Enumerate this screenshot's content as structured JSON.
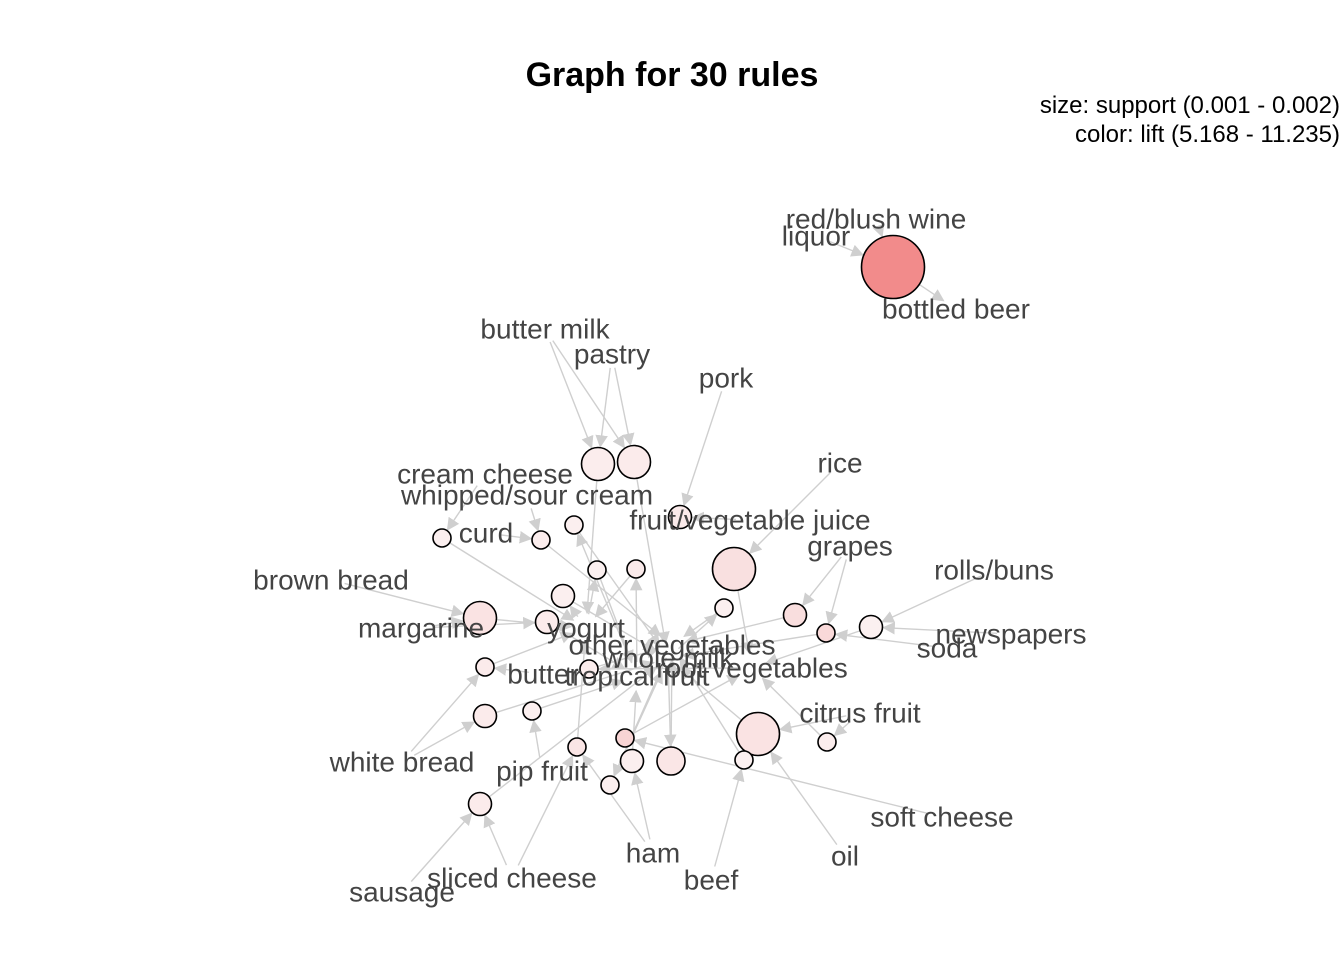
{
  "title": "Graph for 30 rules",
  "legend": {
    "size": "size: support (0.001 - 0.002)",
    "color": "color: lift (5.168 - 11.235)"
  },
  "colors": {
    "lift_low": "#fbf1f1",
    "lift_high": "#f28b8b",
    "edge": "#cfcfcf",
    "label": "#444444"
  },
  "items": [
    {
      "id": "red-blush-wine",
      "label": "red/blush wine"
    },
    {
      "id": "liquor",
      "label": "liquor"
    },
    {
      "id": "bottled-beer",
      "label": "bottled beer"
    },
    {
      "id": "butter-milk",
      "label": "butter milk"
    },
    {
      "id": "pastry",
      "label": "pastry"
    },
    {
      "id": "pork",
      "label": "pork"
    },
    {
      "id": "rice",
      "label": "rice"
    },
    {
      "id": "cream-cheese",
      "label": "cream cheese"
    },
    {
      "id": "whipped-sour-cream",
      "label": "whipped/sour cream"
    },
    {
      "id": "fruit-vegetable-juice",
      "label": "fruit/vegetable juice"
    },
    {
      "id": "curd",
      "label": "curd"
    },
    {
      "id": "grapes",
      "label": "grapes"
    },
    {
      "id": "rolls-buns",
      "label": "rolls/buns"
    },
    {
      "id": "brown-bread",
      "label": "brown bread"
    },
    {
      "id": "newspapers",
      "label": "newspapers"
    },
    {
      "id": "soda",
      "label": "soda"
    },
    {
      "id": "margarine",
      "label": "margarine"
    },
    {
      "id": "yogurt",
      "label": "yogurt"
    },
    {
      "id": "other-vegetables",
      "label": "other vegetables"
    },
    {
      "id": "whole-milk",
      "label": "whole milk"
    },
    {
      "id": "root-vegetables",
      "label": "root vegetables"
    },
    {
      "id": "butter",
      "label": "butter"
    },
    {
      "id": "tropical-fruit",
      "label": "tropical fruit"
    },
    {
      "id": "citrus-fruit",
      "label": "citrus fruit"
    },
    {
      "id": "white-bread",
      "label": "white bread"
    },
    {
      "id": "pip-fruit",
      "label": "pip fruit"
    },
    {
      "id": "soft-cheese",
      "label": "soft cheese"
    },
    {
      "id": "ham",
      "label": "ham"
    },
    {
      "id": "oil",
      "label": "oil"
    },
    {
      "id": "sliced-cheese",
      "label": "sliced cheese"
    },
    {
      "id": "beef",
      "label": "beef"
    },
    {
      "id": "sausage",
      "label": "sausage"
    }
  ],
  "rules": [
    {
      "id": "r1",
      "support": 0.0019,
      "lift": 11.235
    },
    {
      "id": "r2",
      "support": 0.0013,
      "lift": 5.4
    },
    {
      "id": "r3",
      "support": 0.0013,
      "lift": 5.5
    },
    {
      "id": "r4",
      "support": 0.0011,
      "lift": 5.6
    },
    {
      "id": "r5",
      "support": 0.001,
      "lift": 5.3
    },
    {
      "id": "r6",
      "support": 0.001,
      "lift": 5.4
    },
    {
      "id": "r7",
      "support": 0.001,
      "lift": 5.3
    },
    {
      "id": "r8",
      "support": 0.0015,
      "lift": 6.2
    },
    {
      "id": "r9",
      "support": 0.001,
      "lift": 5.2
    },
    {
      "id": "r10",
      "support": 0.001,
      "lift": 5.6
    },
    {
      "id": "r11",
      "support": 0.0011,
      "lift": 6.3
    },
    {
      "id": "r12",
      "support": 0.001,
      "lift": 6.6
    },
    {
      "id": "r13",
      "support": 0.0011,
      "lift": 5.2
    },
    {
      "id": "r14",
      "support": 0.0013,
      "lift": 6.0
    },
    {
      "id": "r15",
      "support": 0.0011,
      "lift": 5.3
    },
    {
      "id": "r16",
      "support": 0.001,
      "lift": 5.3
    },
    {
      "id": "r17",
      "support": 0.0011,
      "lift": 5.5
    },
    {
      "id": "r18",
      "support": 0.001,
      "lift": 5.5
    },
    {
      "id": "r19",
      "support": 0.0011,
      "lift": 5.5
    },
    {
      "id": "r20",
      "support": 0.001,
      "lift": 5.3
    },
    {
      "id": "r21",
      "support": 0.0015,
      "lift": 6.0
    },
    {
      "id": "r22",
      "support": 0.001,
      "lift": 5.4
    },
    {
      "id": "r23",
      "support": 0.001,
      "lift": 5.4
    },
    {
      "id": "r24",
      "support": 0.001,
      "lift": 5.2
    },
    {
      "id": "r25",
      "support": 0.001,
      "lift": 6.9
    },
    {
      "id": "r26",
      "support": 0.0011,
      "lift": 5.5
    },
    {
      "id": "r27",
      "support": 0.001,
      "lift": 5.9
    },
    {
      "id": "r28",
      "support": 0.0012,
      "lift": 5.8
    },
    {
      "id": "r29",
      "support": 0.0011,
      "lift": 5.3
    },
    {
      "id": "r30",
      "support": 0.001,
      "lift": 5.3
    }
  ],
  "edges": [
    [
      "red-blush-wine",
      "r1"
    ],
    [
      "liquor",
      "r1"
    ],
    [
      "r1",
      "bottled-beer"
    ],
    [
      "butter-milk",
      "r2"
    ],
    [
      "pastry",
      "r2"
    ],
    [
      "pastry",
      "r3"
    ],
    [
      "butter-milk",
      "r3"
    ],
    [
      "pork",
      "r4"
    ],
    [
      "rice",
      "r8"
    ],
    [
      "cream-cheese",
      "r5"
    ],
    [
      "whipped-sour-cream",
      "r6"
    ],
    [
      "curd",
      "r6"
    ],
    [
      "fruit-vegetable-juice",
      "r4"
    ],
    [
      "grapes",
      "r11"
    ],
    [
      "grapes",
      "r12"
    ],
    [
      "rolls-buns",
      "r13"
    ],
    [
      "newspapers",
      "r13"
    ],
    [
      "soda",
      "r12"
    ],
    [
      "brown-bread",
      "r14"
    ],
    [
      "margarine",
      "r14"
    ],
    [
      "margarine",
      "r17"
    ],
    [
      "butter",
      "r18"
    ],
    [
      "white-bread",
      "r19"
    ],
    [
      "white-bread",
      "r18"
    ],
    [
      "pip-fruit",
      "r20"
    ],
    [
      "sausage",
      "r26"
    ],
    [
      "sliced-cheese",
      "r26"
    ],
    [
      "sliced-cheese",
      "r27"
    ],
    [
      "ham",
      "r29"
    ],
    [
      "ham",
      "r27"
    ],
    [
      "beef",
      "r24"
    ],
    [
      "oil",
      "r21"
    ],
    [
      "soft-cheese",
      "r25"
    ],
    [
      "citrus-fruit",
      "r21"
    ],
    [
      "r2",
      "yogurt"
    ],
    [
      "r3",
      "whole-milk"
    ],
    [
      "r5",
      "yogurt"
    ],
    [
      "r6",
      "other-vegetables"
    ],
    [
      "r7",
      "whole-milk"
    ],
    [
      "r8",
      "root-vegetables"
    ],
    [
      "r9",
      "tropical-fruit"
    ],
    [
      "r10",
      "yogurt"
    ],
    [
      "r11",
      "other-vegetables"
    ],
    [
      "r12",
      "whole-milk"
    ],
    [
      "r13",
      "root-vegetables"
    ],
    [
      "r14",
      "yogurt"
    ],
    [
      "r15",
      "whole-milk"
    ],
    [
      "r16",
      "other-vegetables"
    ],
    [
      "r17",
      "tropical-fruit"
    ],
    [
      "r18",
      "yogurt"
    ],
    [
      "r19",
      "whole-milk"
    ],
    [
      "r20",
      "tropical-fruit"
    ],
    [
      "r21",
      "whole-milk"
    ],
    [
      "r22",
      "other-vegetables"
    ],
    [
      "r23",
      "root-vegetables"
    ],
    [
      "r24",
      "other-vegetables"
    ],
    [
      "r25",
      "root-vegetables"
    ],
    [
      "r26",
      "whole-milk"
    ],
    [
      "r27",
      "yogurt"
    ],
    [
      "r28",
      "other-vegetables"
    ],
    [
      "r29",
      "tropical-fruit"
    ],
    [
      "r30",
      "whole-milk"
    ],
    [
      "yogurt",
      "r9"
    ],
    [
      "tropical-fruit",
      "r10"
    ],
    [
      "whole-milk",
      "r28"
    ],
    [
      "other-vegetables",
      "r30"
    ],
    [
      "root-vegetables",
      "r22"
    ],
    [
      "citrus-fruit",
      "r23"
    ],
    [
      "yogurt",
      "r15"
    ],
    [
      "whole-milk",
      "r16"
    ],
    [
      "tropical-fruit",
      "r7"
    ]
  ]
}
